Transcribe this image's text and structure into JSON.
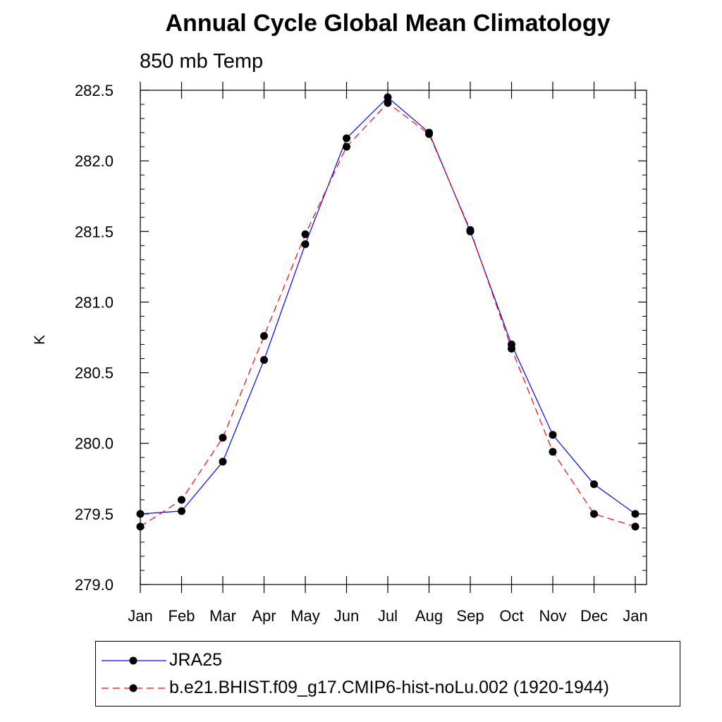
{
  "chart_data": {
    "type": "line",
    "title": "Annual Cycle Global Mean Climatology",
    "subtitle": "850 mb Temp",
    "xlabel": "",
    "ylabel": "K",
    "categories": [
      "Jan",
      "Feb",
      "Mar",
      "Apr",
      "May",
      "Jun",
      "Jul",
      "Aug",
      "Sep",
      "Oct",
      "Nov",
      "Dec",
      "Jan"
    ],
    "ylim": [
      279.0,
      282.5
    ],
    "yticks": [
      "279.0",
      "279.5",
      "280.0",
      "280.5",
      "281.0",
      "281.5",
      "282.0",
      "282.5"
    ],
    "ytick_values": [
      279.0,
      279.5,
      280.0,
      280.5,
      281.0,
      281.5,
      282.0,
      282.5
    ],
    "series": [
      {
        "name": "JRA25",
        "color": "#0000ff",
        "dash": "solid",
        "marker": "circle",
        "values": [
          279.5,
          279.52,
          279.87,
          280.59,
          281.41,
          282.16,
          282.45,
          282.2,
          281.5,
          280.7,
          280.06,
          279.71,
          279.5
        ]
      },
      {
        "name": "b.e21.BHIST.f09_g17.CMIP6-hist-noLu.002 (1920-1944)",
        "color": "#ff0000",
        "dash": "dashed",
        "marker": "circle",
        "values": [
          279.41,
          279.6,
          280.04,
          280.76,
          281.48,
          282.1,
          282.41,
          282.19,
          281.51,
          280.67,
          279.94,
          279.5,
          279.41
        ]
      }
    ],
    "legend": "bottom"
  }
}
